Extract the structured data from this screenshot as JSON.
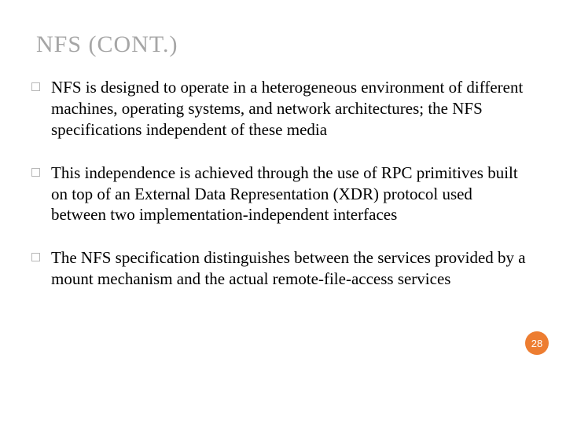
{
  "title": "NFS (CONT.)",
  "bullets": [
    "NFS is designed to operate in a heterogeneous environment of different machines, operating systems, and network architectures; the NFS specifications independent of these media",
    "This independence is achieved through the use of RPC primitives built on top of an External Data Representation (XDR) protocol used between two implementation-independent interfaces",
    "The NFS specification distinguishes between the services provided by a mount mechanism and the actual remote-file-access services"
  ],
  "page_number": "28",
  "colors": {
    "title_color": "#a6a6a6",
    "text_color": "#000000",
    "bullet_border": "#b7b7b7",
    "badge_bg": "#ed7d31",
    "badge_text": "#ffffff",
    "background": "#ffffff"
  },
  "typography": {
    "title_fontsize": 30,
    "body_fontsize": 21,
    "badge_fontsize": 13,
    "font_family": "Georgia, serif"
  }
}
